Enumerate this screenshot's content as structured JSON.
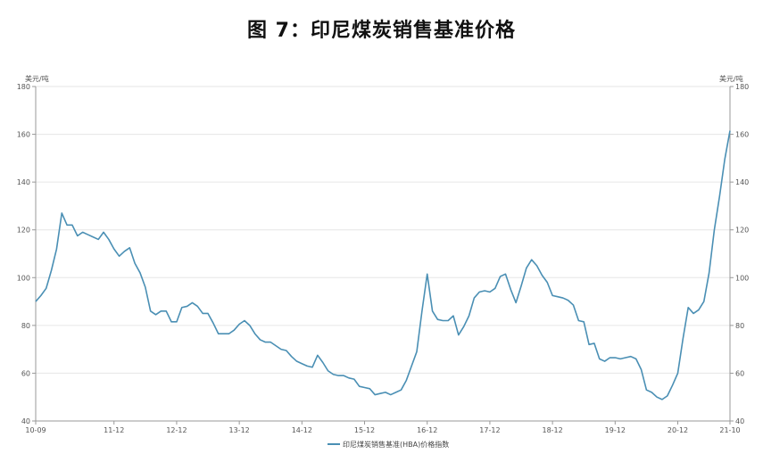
{
  "title": "图 7：印尼煤炭销售基准价格",
  "chart_data": {
    "type": "line",
    "title": "图 7：印尼煤炭销售基准价格",
    "y_unit_left": "美元/吨",
    "y_unit_right": "美元/吨",
    "ylim": [
      40,
      180
    ],
    "yticks": [
      40,
      60,
      80,
      100,
      120,
      140,
      160,
      180
    ],
    "xtick_labels": [
      "10-09",
      "11-12",
      "12-12",
      "13-12",
      "14-12",
      "15-12",
      "16-12",
      "17-12",
      "18-12",
      "19-12",
      "20-12",
      "21-10"
    ],
    "grid": "horizontal",
    "legend_position": "bottom",
    "colors": {
      "line": "#4a8fb4",
      "grid": "#e6e6e6",
      "axis": "#999999"
    },
    "series": [
      {
        "name": "印尼煤炭销售基准(HBA)价格指数",
        "x": [
          "10-09",
          "10-10",
          "10-11",
          "10-12",
          "11-01",
          "11-02",
          "11-03",
          "11-04",
          "11-05",
          "11-06",
          "11-07",
          "11-08",
          "11-09",
          "11-10",
          "11-11",
          "11-12",
          "12-01",
          "12-02",
          "12-03",
          "12-04",
          "12-05",
          "12-06",
          "12-07",
          "12-08",
          "12-09",
          "12-10",
          "12-11",
          "12-12",
          "13-01",
          "13-02",
          "13-03",
          "13-04",
          "13-05",
          "13-06",
          "13-07",
          "13-08",
          "13-09",
          "13-10",
          "13-11",
          "13-12",
          "14-01",
          "14-02",
          "14-03",
          "14-04",
          "14-05",
          "14-06",
          "14-07",
          "14-08",
          "14-09",
          "14-10",
          "14-11",
          "14-12",
          "15-01",
          "15-02",
          "15-03",
          "15-04",
          "15-05",
          "15-06",
          "15-07",
          "15-08",
          "15-09",
          "15-10",
          "15-11",
          "15-12",
          "16-01",
          "16-02",
          "16-03",
          "16-04",
          "16-05",
          "16-06",
          "16-07",
          "16-08",
          "16-09",
          "16-10",
          "16-11",
          "16-12",
          "17-01",
          "17-02",
          "17-03",
          "17-04",
          "17-05",
          "17-06",
          "17-07",
          "17-08",
          "17-09",
          "17-10",
          "17-11",
          "17-12",
          "18-01",
          "18-02",
          "18-03",
          "18-04",
          "18-05",
          "18-06",
          "18-07",
          "18-08",
          "18-09",
          "18-10",
          "18-11",
          "18-12",
          "19-01",
          "19-02",
          "19-03",
          "19-04",
          "19-05",
          "19-06",
          "19-07",
          "19-08",
          "19-09",
          "19-10",
          "19-11",
          "19-12",
          "20-01",
          "20-02",
          "20-03",
          "20-04",
          "20-05",
          "20-06",
          "20-07",
          "20-08",
          "20-09",
          "20-10",
          "20-11",
          "20-12",
          "21-01",
          "21-02",
          "21-03",
          "21-04",
          "21-05",
          "21-06",
          "21-07",
          "21-08",
          "21-09",
          "21-10"
        ],
        "values": [
          90,
          92.5,
          95.5,
          103,
          112,
          127,
          122,
          122,
          117.5,
          119,
          118,
          117,
          116,
          119,
          116,
          112,
          109,
          111,
          112.5,
          106,
          102,
          96,
          86,
          84.5,
          86,
          86,
          81.5,
          81.5,
          87.5,
          88,
          89.5,
          88,
          85,
          85,
          81,
          76.5,
          76.5,
          76.5,
          78,
          80.5,
          82,
          80,
          76.5,
          74,
          73,
          73,
          71.5,
          70,
          69.5,
          67,
          65,
          64,
          63,
          62.5,
          67.5,
          64.5,
          61,
          59.5,
          59,
          59,
          58,
          57.5,
          54.5,
          54,
          53.5,
          51,
          51.5,
          52,
          51,
          52,
          53,
          57,
          63,
          69,
          86,
          101.5,
          86,
          82.5,
          82,
          82,
          84,
          76,
          79.5,
          84,
          91.5,
          94,
          94.5,
          94,
          95.5,
          100.5,
          101.5,
          95,
          89.5,
          96.5,
          104,
          107.5,
          105,
          101,
          98,
          92.5,
          92,
          91.5,
          90.5,
          88.5,
          82,
          81.5,
          72,
          72.5,
          66,
          65,
          66.5,
          66.5,
          66,
          66.5,
          67,
          66,
          61.5,
          53,
          52,
          50,
          49,
          50.5,
          55,
          60,
          74.5,
          87.5,
          85,
          86.5,
          90,
          102,
          120,
          134,
          149.5,
          161.5
        ]
      }
    ]
  }
}
